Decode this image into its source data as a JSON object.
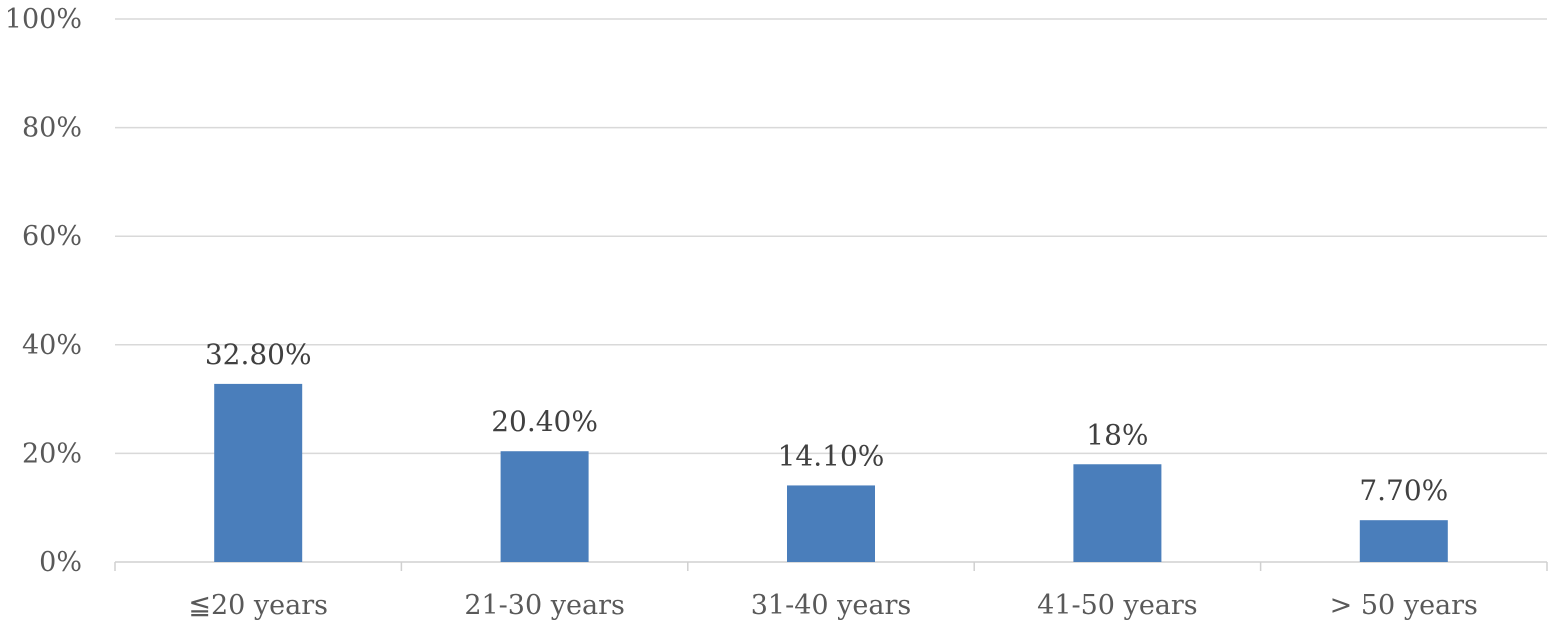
{
  "chart_data": {
    "type": "bar",
    "categories": [
      "≦20 years",
      "21-30 years",
      "31-40 years",
      "41-50 years",
      "> 50 years"
    ],
    "values": [
      32.8,
      20.4,
      14.1,
      18,
      7.7
    ],
    "data_labels": [
      "32.80%",
      "20.40%",
      "14.10%",
      "18%",
      "7.70%"
    ],
    "y_ticks": [
      0,
      20,
      40,
      60,
      80,
      100
    ],
    "y_tick_labels": [
      "0%",
      "20%",
      "40%",
      "60%",
      "80%",
      "100%"
    ],
    "ylim": [
      0,
      100
    ],
    "title": "",
    "xlabel": "",
    "ylabel": "",
    "grid": true,
    "legend": "none",
    "colors": {
      "bar": "#4a7ebb",
      "grid": "#d9d9d9",
      "axis": "#d0d0d0"
    }
  }
}
